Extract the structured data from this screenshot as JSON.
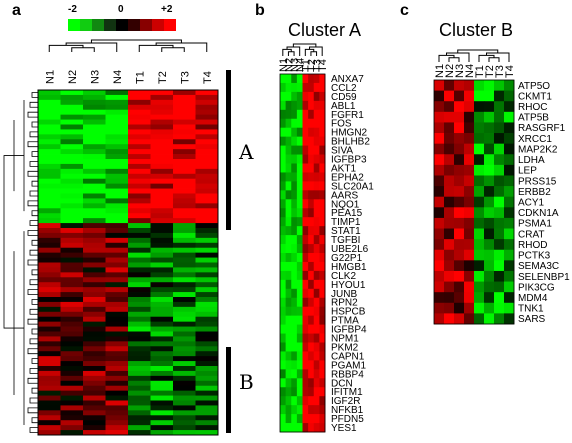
{
  "panels": {
    "a": "a",
    "b": "b",
    "c": "c"
  },
  "scale": {
    "min_label": "-2",
    "mid_label": "0",
    "max_label": "+2",
    "colors": [
      "#00ff00",
      "#11cc11",
      "#118811",
      "#113311",
      "#000000",
      "#330000",
      "#880000",
      "#cc0000",
      "#ff0000"
    ]
  },
  "panel_a": {
    "columns": [
      "N1",
      "N2",
      "N3",
      "N4",
      "T1",
      "T2",
      "T3",
      "T4"
    ],
    "cluster_labels": {
      "top": "A",
      "bottom": "B"
    }
  },
  "panel_b": {
    "title": "Cluster A",
    "columns": [
      "N1",
      "N2",
      "N3",
      "N4",
      "T1",
      "T2",
      "T3",
      "T4"
    ],
    "genes": [
      "ANXA7",
      "CCL2",
      "CD59",
      "ABL1",
      "FGFR1",
      "FOS",
      "HMGN2",
      "BHLHB2",
      "SIVA",
      "IGFBP3",
      "AKT1",
      "EPHA2",
      "SLC20A1",
      "AARS",
      "NQO1",
      "PEA15",
      "TIMP1",
      "STAT1",
      "TGFBI",
      "UBE2L6",
      "G22P1",
      "HMGB1",
      "CLK2",
      "HYOU1",
      "JUNB",
      "RPN2",
      "HSPCB",
      "PTMA",
      "IGFBP4",
      "NPM1",
      "PKM2",
      "CAPN1",
      "PGAM1",
      "RBBP4",
      "DCN",
      "IFITM1",
      "IGF2R",
      "NFKB1",
      "PFDN5",
      "YES1"
    ]
  },
  "panel_c": {
    "title": "Cluster B",
    "columns": [
      "N1",
      "N2",
      "N3",
      "N4",
      "T1",
      "T2",
      "T3",
      "T4"
    ],
    "genes": [
      "ATP5O",
      "CKMT1",
      "RHOC",
      "ATP5B",
      "RASGRF1",
      "XRCC1",
      "MAP2K2",
      "LDHA",
      "LEP",
      "PRSS15",
      "ERBB2",
      "ACY1",
      "CDKN1A",
      "PSMA1",
      "CRAT",
      "RHOD",
      "PCTK3",
      "SEMA3C",
      "SELENBP1",
      "PIK3CG",
      "MDM4",
      "TNK1",
      "SARS"
    ]
  }
}
